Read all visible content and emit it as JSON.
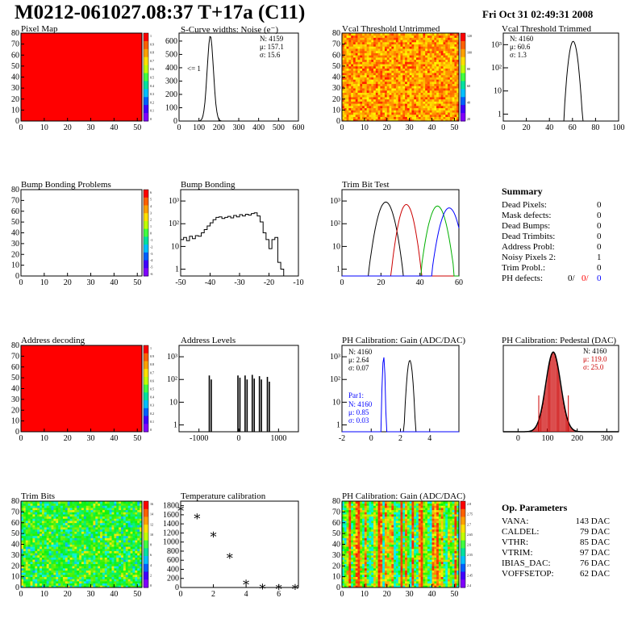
{
  "header": {
    "title": "M0212-061027.08:37 T+17a (C11)",
    "date": "Fri Oct 31 02:49:31 2008"
  },
  "colors": {
    "red": "#ff0000",
    "blue": "#0000ff",
    "green": "#00b000",
    "hatch": "#cc0000"
  },
  "palette": {
    "ticks_pixel": [
      "1",
      "0.9",
      "0.8",
      "0.7",
      "0.6",
      "0.5",
      "0.4",
      "0.3",
      "0.2",
      "0.1",
      "0"
    ],
    "ticks_vcal": [
      "120",
      "100",
      "80",
      "60",
      "40",
      "20"
    ],
    "ticks_bump": [
      "6",
      "5",
      "4",
      "3",
      "2",
      "1",
      "0",
      "-1",
      "-2",
      "-3",
      "-4",
      "-5",
      "-6"
    ],
    "ticks_trim": [
      "16",
      "14",
      "12",
      "10",
      "8",
      "6",
      "4",
      "2",
      "0"
    ],
    "ticks_gain": [
      "2.8",
      "2.75",
      "2.7",
      "2.65",
      "2.6",
      "2.55",
      "2.5",
      "2.45",
      "2.4"
    ]
  },
  "panels": {
    "pixel_map": {
      "title": "Pixel Map",
      "type": "heatmap",
      "x": {
        "ticks": [
          "0",
          "10",
          "20",
          "30",
          "40",
          "50"
        ]
      },
      "y": {
        "ticks": [
          "0",
          "10",
          "20",
          "30",
          "40",
          "50",
          "60",
          "70",
          "80"
        ]
      },
      "fill": "uniform-red"
    },
    "scurve": {
      "title": "S-Curve widths: Noise (e⁻)",
      "type": "histogram",
      "x": {
        "ticks": [
          "0",
          "100",
          "200",
          "300",
          "400",
          "500",
          "600"
        ],
        "range": [
          0,
          600
        ]
      },
      "y": {
        "ticks": [
          "0",
          "100",
          "200",
          "300",
          "400",
          "500",
          "600"
        ],
        "range": [
          0,
          660
        ]
      },
      "stats": [
        "N: 4159",
        "μ: 157.1",
        "σ: 15.6"
      ],
      "annotation": "<= 1",
      "peak": {
        "mean": 157.1,
        "sigma": 15.6,
        "height": 640
      }
    },
    "vcal_untrimmed": {
      "title": "Vcal Threshold Untrimmed",
      "type": "heatmap",
      "x": {
        "ticks": [
          "0",
          "10",
          "20",
          "30",
          "40",
          "50"
        ]
      },
      "y": {
        "ticks": [
          "0",
          "10",
          "20",
          "30",
          "40",
          "50",
          "60",
          "70",
          "80"
        ]
      },
      "fill": "orange-noise"
    },
    "vcal_trimmed": {
      "title": "Vcal Threshold Trimmed",
      "type": "histogram",
      "x": {
        "ticks": [
          "0",
          "20",
          "40",
          "60",
          "80",
          "100"
        ],
        "range": [
          0,
          100
        ]
      },
      "y": {
        "ticks": [
          "1",
          "10",
          "10²",
          "10³"
        ],
        "log": true
      },
      "stats": [
        "N: 4160",
        "μ: 60.6",
        "σ: 1.3"
      ],
      "peak": {
        "mean": 60.6,
        "sigma": 1.3,
        "height": 1400
      }
    },
    "bump_problems": {
      "title": "Bump Bonding Problems",
      "type": "heatmap",
      "x": {
        "ticks": [
          "0",
          "10",
          "20",
          "30",
          "40",
          "50"
        ]
      },
      "y": {
        "ticks": [
          "0",
          "10",
          "20",
          "30",
          "40",
          "50",
          "60",
          "70",
          "80"
        ]
      },
      "fill": "empty"
    },
    "bump_bonding": {
      "title": "Bump Bonding",
      "type": "histogram",
      "x": {
        "ticks": [
          "-50",
          "-40",
          "-30",
          "-20",
          "-10"
        ],
        "range": [
          -50,
          -10
        ]
      },
      "y": {
        "ticks": [
          "1",
          "10",
          "10²",
          "10³"
        ],
        "log": true
      },
      "bins": [
        {
          "x": -50,
          "y": 20
        },
        {
          "x": -49,
          "y": 25
        },
        {
          "x": -48,
          "y": 18
        },
        {
          "x": -47,
          "y": 28
        },
        {
          "x": -46,
          "y": 22
        },
        {
          "x": -45,
          "y": 30
        },
        {
          "x": -44,
          "y": 28
        },
        {
          "x": -43,
          "y": 40
        },
        {
          "x": -42,
          "y": 55
        },
        {
          "x": -41,
          "y": 80
        },
        {
          "x": -40,
          "y": 110
        },
        {
          "x": -39,
          "y": 150
        },
        {
          "x": -38,
          "y": 190
        },
        {
          "x": -37,
          "y": 200
        },
        {
          "x": -36,
          "y": 170
        },
        {
          "x": -35,
          "y": 190
        },
        {
          "x": -34,
          "y": 210
        },
        {
          "x": -33,
          "y": 180
        },
        {
          "x": -32,
          "y": 230
        },
        {
          "x": -31,
          "y": 200
        },
        {
          "x": -30,
          "y": 250
        },
        {
          "x": -29,
          "y": 220
        },
        {
          "x": -28,
          "y": 260
        },
        {
          "x": -27,
          "y": 240
        },
        {
          "x": -26,
          "y": 280
        },
        {
          "x": -25,
          "y": 300
        },
        {
          "x": -24,
          "y": 220
        },
        {
          "x": -23,
          "y": 120
        },
        {
          "x": -22,
          "y": 40
        },
        {
          "x": -21,
          "y": 20
        },
        {
          "x": -20,
          "y": 8
        },
        {
          "x": -19,
          "y": 20
        },
        {
          "x": -18,
          "y": 25
        },
        {
          "x": -17,
          "y": 2
        },
        {
          "x": -16,
          "y": 1
        }
      ]
    },
    "trim_bit": {
      "title": "Trim Bit Test",
      "type": "histogram",
      "x": {
        "ticks": [
          "0",
          "20",
          "40",
          "60"
        ],
        "range": [
          0,
          60
        ]
      },
      "y": {
        "ticks": [
          "1",
          "10",
          "10²",
          "10³"
        ],
        "log": true
      },
      "series": [
        {
          "color": "#000000",
          "mean": 22.5,
          "sigma": 1.8,
          "height": 900
        },
        {
          "color": "#cc0000",
          "mean": 33,
          "sigma": 1.6,
          "height": 700
        },
        {
          "color": "#00b000",
          "mean": 49,
          "sigma": 1.8,
          "height": 600
        },
        {
          "color": "#0000ff",
          "mean": 55,
          "sigma": 1.9,
          "height": 500
        }
      ]
    },
    "address_decoding": {
      "title": "Address decoding",
      "type": "heatmap",
      "x": {
        "ticks": [
          "0",
          "10",
          "20",
          "30",
          "40",
          "50"
        ]
      },
      "y": {
        "ticks": [
          "0",
          "10",
          "20",
          "30",
          "40",
          "50",
          "60",
          "70",
          "80"
        ]
      },
      "fill": "uniform-red"
    },
    "address_levels": {
      "title": "Address Levels",
      "type": "histogram",
      "x": {
        "ticks": [
          "-1000",
          "0",
          "1000"
        ],
        "range": [
          -1500,
          1500
        ]
      },
      "y": {
        "ticks": [
          "1",
          "10",
          "10²",
          "10³"
        ],
        "log": true
      },
      "spikes": [
        {
          "x": -740,
          "y": 150
        },
        {
          "x": -690,
          "y": 100
        },
        {
          "x": -20,
          "y": 150
        },
        {
          "x": 30,
          "y": 120
        },
        {
          "x": 160,
          "y": 150
        },
        {
          "x": 210,
          "y": 100
        },
        {
          "x": 340,
          "y": 160
        },
        {
          "x": 390,
          "y": 110
        },
        {
          "x": 520,
          "y": 140
        },
        {
          "x": 570,
          "y": 100
        },
        {
          "x": 720,
          "y": 130
        },
        {
          "x": 770,
          "y": 80
        }
      ]
    },
    "ph_gain": {
      "title": "PH Calibration: Gain (ADC/DAC)",
      "type": "histogram",
      "x": {
        "ticks": [
          "-2",
          "0",
          "2",
          "4"
        ],
        "range": [
          -2,
          6
        ]
      },
      "y": {
        "ticks": [
          "1",
          "10",
          "10²",
          "10³"
        ],
        "log": true
      },
      "stats": [
        "N: 4160",
        "μ: 2.64",
        "σ: 0.07"
      ],
      "stats2_title": "Par1:",
      "stats2": [
        "N: 4160",
        "μ: 0.85",
        "σ: 0.03"
      ],
      "series": [
        {
          "color": "#000000",
          "mean": 2.64,
          "sigma": 0.07,
          "height": 700
        },
        {
          "color": "#0000ff",
          "mean": 0.85,
          "sigma": 0.03,
          "height": 1000
        }
      ]
    },
    "ph_pedestal": {
      "title": "PH Calibration: Pedestal (DAC)",
      "type": "histogram",
      "x": {
        "ticks": [
          "0",
          "100",
          "200",
          "300"
        ],
        "range": [
          -50,
          340
        ]
      },
      "y": {
        "ticks": [],
        "range": [
          0,
          130
        ]
      },
      "stats": [
        "N: 4160",
        "μ: 119.0",
        "σ: 25.0"
      ],
      "peak": {
        "mean": 119,
        "sigma": 25,
        "height": 120
      },
      "markers": [
        70,
        170
      ]
    },
    "trim_bits": {
      "title": "Trim Bits",
      "type": "heatmap",
      "x": {
        "ticks": [
          "0",
          "10",
          "20",
          "30",
          "40",
          "50"
        ]
      },
      "y": {
        "ticks": [
          "0",
          "10",
          "20",
          "30",
          "40",
          "50",
          "60",
          "70",
          "80"
        ]
      },
      "fill": "green-noise"
    },
    "temperature": {
      "title": "Temperature calibration",
      "type": "scatter",
      "x": {
        "ticks": [
          "0",
          "2",
          "4",
          "6"
        ],
        "range": [
          0,
          7.2
        ]
      },
      "y": {
        "ticks": [
          "0",
          "200",
          "400",
          "600",
          "800",
          "1000",
          "1200",
          "1400",
          "1600",
          "1800"
        ],
        "range": [
          0,
          1900
        ]
      },
      "points": [
        {
          "x": 0,
          "y": 1730
        },
        {
          "x": 1,
          "y": 1560
        },
        {
          "x": 2,
          "y": 1160
        },
        {
          "x": 3,
          "y": 690
        },
        {
          "x": 4,
          "y": 110
        },
        {
          "x": 5,
          "y": 15
        },
        {
          "x": 6,
          "y": 10
        },
        {
          "x": 7,
          "y": 10
        }
      ]
    },
    "ph_gain_map": {
      "title": "PH Calibration: Gain (ADC/DAC)",
      "type": "heatmap",
      "x": {
        "ticks": [
          "0",
          "10",
          "20",
          "30",
          "40",
          "50"
        ]
      },
      "y": {
        "ticks": [
          "0",
          "10",
          "20",
          "30",
          "40",
          "50",
          "60",
          "70",
          "80"
        ]
      },
      "fill": "stripes"
    }
  },
  "summary": {
    "title": "Summary",
    "rows": [
      {
        "label": "Dead Pixels:",
        "value": "0"
      },
      {
        "label": "Mask defects:",
        "value": "0"
      },
      {
        "label": "Dead Bumps:",
        "value": "0"
      },
      {
        "label": "Dead Trimbits:",
        "value": "0"
      },
      {
        "label": "Address Probl:",
        "value": "0"
      },
      {
        "label": "Noisy Pixels 2:",
        "value": "1"
      },
      {
        "label": "Trim Probl.:",
        "value": "0"
      }
    ],
    "ph_label": "PH defects:",
    "ph_values": [
      "0/",
      "0/",
      "0"
    ]
  },
  "op_parameters": {
    "title": "Op. Parameters",
    "rows": [
      {
        "label": "VANA:",
        "value": "143 DAC"
      },
      {
        "label": "CALDEL:",
        "value": "79 DAC"
      },
      {
        "label": "VTHR:",
        "value": "85 DAC"
      },
      {
        "label": "VTRIM:",
        "value": "97 DAC"
      },
      {
        "label": "IBIAS_DAC:",
        "value": "76 DAC"
      },
      {
        "label": "VOFFSETOP:",
        "value": "62 DAC"
      }
    ]
  }
}
